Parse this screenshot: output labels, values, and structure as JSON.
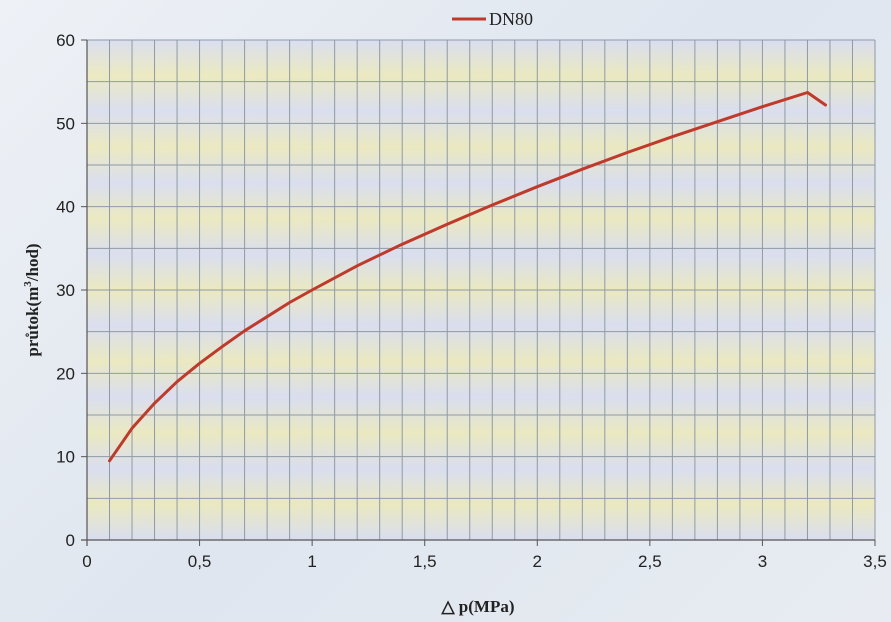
{
  "chart_data": {
    "type": "line",
    "title": "",
    "xlabel": "△ p(MPa)",
    "ylabel_main": "průtok(m",
    "ylabel_sup": "3",
    "ylabel_tail": "/hod)",
    "xlim": [
      0,
      3.5
    ],
    "ylim": [
      0,
      60
    ],
    "x_ticks": [
      0,
      0.5,
      1,
      1.5,
      2,
      2.5,
      3,
      3.5
    ],
    "x_tick_labels": [
      "0",
      "0,5",
      "1",
      "1,5",
      "2",
      "2,5",
      "3",
      "3,5"
    ],
    "y_ticks": [
      0,
      10,
      20,
      30,
      40,
      50,
      60
    ],
    "y_tick_labels": [
      "0",
      "10",
      "20",
      "30",
      "40",
      "50",
      "60"
    ],
    "x_minor_step": 0.1,
    "y_minor_step": 5,
    "grid": true,
    "legend_position": "top-center",
    "colors": {
      "series": "#c0392b",
      "grid": "#8f9aa6",
      "plot_band_a": "#d8dcef",
      "plot_band_b": "#ece9b8"
    },
    "series": [
      {
        "name": "DN80",
        "x": [
          0.1,
          0.2,
          0.3,
          0.4,
          0.5,
          0.6,
          0.7,
          0.8,
          0.9,
          1.0,
          1.2,
          1.4,
          1.6,
          1.8,
          2.0,
          2.2,
          2.4,
          2.6,
          2.8,
          3.0,
          3.2,
          3.28
        ],
        "y": [
          9.5,
          13.4,
          16.4,
          19.0,
          21.2,
          23.2,
          25.1,
          26.8,
          28.5,
          30.0,
          32.9,
          35.5,
          37.9,
          40.2,
          42.4,
          44.5,
          46.5,
          48.4,
          50.2,
          52.0,
          53.7,
          52.2
        ]
      }
    ]
  }
}
